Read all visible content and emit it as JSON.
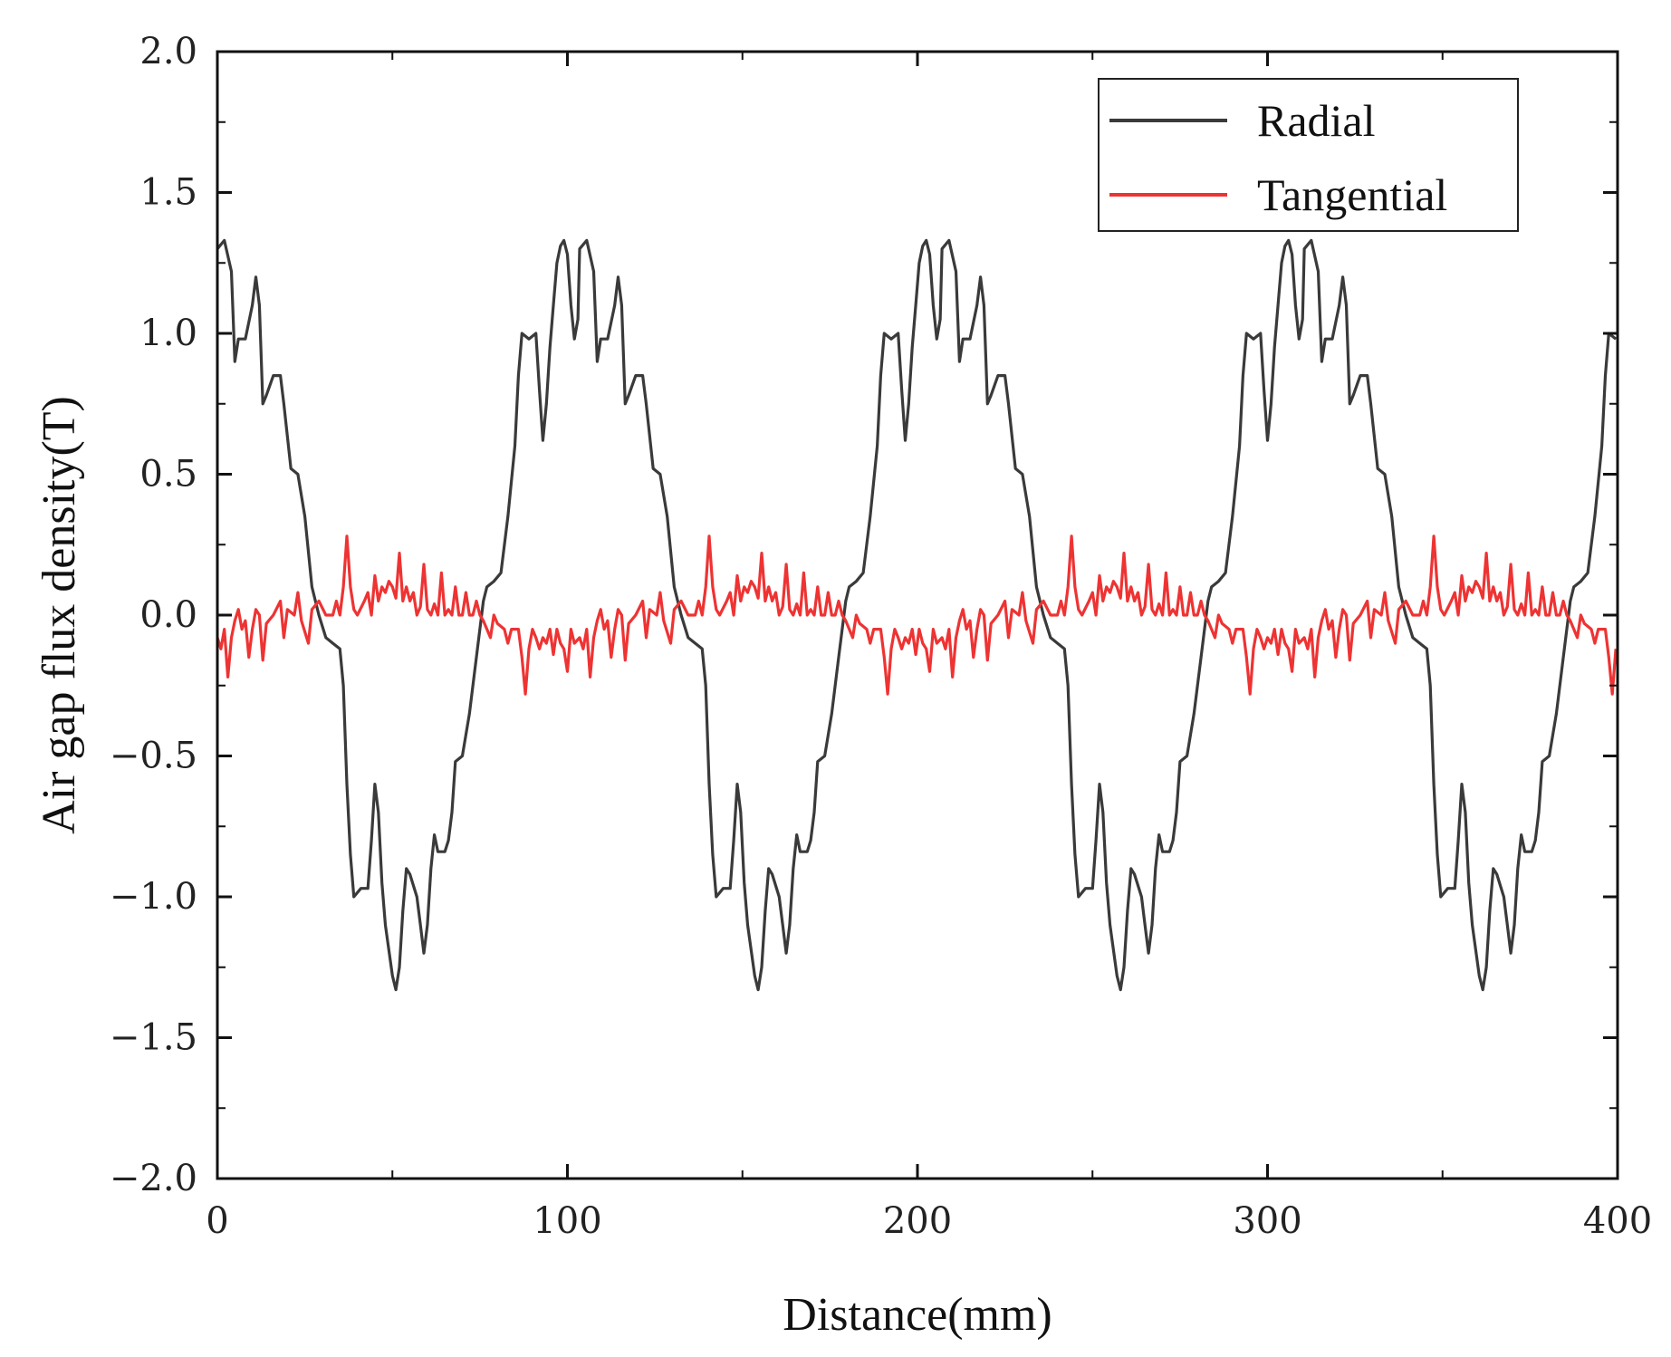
{
  "chart_data": {
    "type": "line",
    "xlabel": "Distance(mm)",
    "ylabel": "Air gap flux density(T)",
    "xlim": [
      0,
      400
    ],
    "ylim": [
      -2.0,
      2.0
    ],
    "x_ticks": [
      0,
      100,
      200,
      300,
      400
    ],
    "x_tick_labels": [
      "0",
      "100",
      "200",
      "300",
      "400"
    ],
    "y_ticks": [
      2.0,
      1.5,
      1.0,
      0.5,
      0.0,
      -0.5,
      -1.0,
      -1.5,
      -2.0
    ],
    "y_tick_labels": [
      "2.0",
      "1.5",
      "1.0",
      "0.5",
      "0.0",
      "−0.5",
      "−1.0",
      "−1.5",
      "−2.0"
    ],
    "legend_position": "top-right",
    "grid": false,
    "period": 103.5,
    "series": [
      {
        "name": "Radial",
        "color": "#3a3a3a",
        "period_profile": [
          [
            0,
            1.3
          ],
          [
            2,
            1.33
          ],
          [
            4,
            1.22
          ],
          [
            5,
            0.9
          ],
          [
            6,
            0.98
          ],
          [
            8,
            0.98
          ],
          [
            10,
            1.1
          ],
          [
            11,
            1.2
          ],
          [
            12,
            1.1
          ],
          [
            13,
            0.75
          ],
          [
            14,
            0.78
          ],
          [
            16,
            0.85
          ],
          [
            18,
            0.85
          ],
          [
            19,
            0.75
          ],
          [
            21,
            0.52
          ],
          [
            23,
            0.5
          ],
          [
            25,
            0.35
          ],
          [
            27,
            0.1
          ],
          [
            29,
            0.0
          ],
          [
            31,
            -0.08
          ],
          [
            33,
            -0.1
          ],
          [
            35,
            -0.12
          ],
          [
            36,
            -0.25
          ],
          [
            37,
            -0.6
          ],
          [
            38,
            -0.85
          ],
          [
            39,
            -1.0
          ],
          [
            41,
            -0.97
          ],
          [
            43,
            -0.97
          ],
          [
            44,
            -0.8
          ],
          [
            45,
            -0.6
          ],
          [
            46,
            -0.7
          ],
          [
            47,
            -0.95
          ],
          [
            48,
            -1.1
          ],
          [
            50,
            -1.28
          ],
          [
            51,
            -1.33
          ],
          [
            52,
            -1.25
          ],
          [
            53,
            -1.05
          ],
          [
            54,
            -0.9
          ],
          [
            55,
            -0.92
          ],
          [
            57,
            -1.0
          ],
          [
            58,
            -1.1
          ],
          [
            59,
            -1.2
          ],
          [
            60,
            -1.1
          ],
          [
            61,
            -0.9
          ],
          [
            62,
            -0.78
          ],
          [
            63,
            -0.84
          ],
          [
            65,
            -0.84
          ],
          [
            66,
            -0.8
          ],
          [
            67,
            -0.7
          ],
          [
            68,
            -0.52
          ],
          [
            70,
            -0.5
          ],
          [
            72,
            -0.35
          ],
          [
            74,
            -0.15
          ],
          [
            76,
            0.05
          ],
          [
            77,
            0.1
          ],
          [
            79,
            0.12
          ],
          [
            81,
            0.15
          ],
          [
            83,
            0.35
          ],
          [
            85,
            0.6
          ],
          [
            86,
            0.85
          ],
          [
            87,
            1.0
          ],
          [
            89,
            0.98
          ],
          [
            91,
            1.0
          ],
          [
            92,
            0.8
          ],
          [
            93,
            0.62
          ],
          [
            94,
            0.75
          ],
          [
            95,
            0.95
          ],
          [
            96,
            1.1
          ],
          [
            97,
            1.25
          ],
          [
            98,
            1.31
          ],
          [
            99,
            1.33
          ],
          [
            100,
            1.28
          ],
          [
            101,
            1.1
          ],
          [
            102,
            0.98
          ],
          [
            103,
            1.05
          ],
          [
            103.5,
            1.3
          ]
        ]
      },
      {
        "name": "Tangential",
        "color": "#ee3333",
        "period_profile": [
          [
            0,
            -0.08
          ],
          [
            1,
            -0.12
          ],
          [
            2,
            -0.05
          ],
          [
            3,
            -0.22
          ],
          [
            4,
            -0.08
          ],
          [
            5,
            -0.02
          ],
          [
            6,
            0.02
          ],
          [
            7,
            -0.05
          ],
          [
            8,
            -0.02
          ],
          [
            9,
            -0.15
          ],
          [
            10,
            -0.05
          ],
          [
            11,
            0.02
          ],
          [
            12,
            0.0
          ],
          [
            13,
            -0.16
          ],
          [
            14,
            -0.03
          ],
          [
            16,
            0.0
          ],
          [
            18,
            0.05
          ],
          [
            19,
            -0.08
          ],
          [
            20,
            0.02
          ],
          [
            22,
            0.0
          ],
          [
            23,
            0.08
          ],
          [
            24,
            -0.02
          ],
          [
            26,
            -0.1
          ],
          [
            27,
            0.02
          ],
          [
            29,
            0.05
          ],
          [
            31,
            0.0
          ],
          [
            33,
            0.0
          ],
          [
            34,
            0.05
          ],
          [
            35,
            0.0
          ],
          [
            36,
            0.1
          ],
          [
            37,
            0.28
          ],
          [
            38,
            0.1
          ],
          [
            39,
            0.02
          ],
          [
            40,
            0.0
          ],
          [
            42,
            0.05
          ],
          [
            43,
            0.08
          ],
          [
            44,
            0.0
          ],
          [
            45,
            0.14
          ],
          [
            46,
            0.05
          ],
          [
            47,
            0.1
          ],
          [
            48,
            0.08
          ],
          [
            49,
            0.12
          ],
          [
            50,
            0.1
          ],
          [
            51,
            0.06
          ],
          [
            52,
            0.22
          ],
          [
            53,
            0.05
          ],
          [
            54,
            0.1
          ],
          [
            55,
            0.05
          ],
          [
            56,
            0.08
          ],
          [
            57,
            0.0
          ],
          [
            58,
            0.03
          ],
          [
            59,
            0.18
          ],
          [
            60,
            0.02
          ],
          [
            61,
            0.0
          ],
          [
            62,
            0.04
          ],
          [
            63,
            0.0
          ],
          [
            64,
            0.15
          ],
          [
            65,
            0.0
          ],
          [
            66,
            0.02
          ],
          [
            67,
            0.0
          ],
          [
            68,
            0.1
          ],
          [
            69,
            0.0
          ],
          [
            70,
            0.0
          ],
          [
            71,
            0.08
          ],
          [
            72,
            0.0
          ],
          [
            73,
            0.0
          ],
          [
            74,
            0.05
          ],
          [
            75,
            0.0
          ],
          [
            76,
            -0.02
          ],
          [
            78,
            -0.08
          ],
          [
            79,
            0.0
          ],
          [
            80,
            -0.03
          ],
          [
            82,
            -0.05
          ],
          [
            83,
            -0.1
          ],
          [
            84,
            -0.05
          ],
          [
            86,
            -0.05
          ],
          [
            87,
            -0.15
          ],
          [
            88,
            -0.28
          ],
          [
            89,
            -0.12
          ],
          [
            90,
            -0.05
          ],
          [
            91,
            -0.08
          ],
          [
            92,
            -0.12
          ],
          [
            93,
            -0.08
          ],
          [
            94,
            -0.1
          ],
          [
            95,
            -0.05
          ],
          [
            96,
            -0.14
          ],
          [
            97,
            -0.05
          ],
          [
            98,
            -0.1
          ],
          [
            99,
            -0.12
          ],
          [
            100,
            -0.2
          ],
          [
            101,
            -0.05
          ],
          [
            102,
            -0.1
          ],
          [
            103.5,
            -0.08
          ]
        ]
      }
    ]
  }
}
